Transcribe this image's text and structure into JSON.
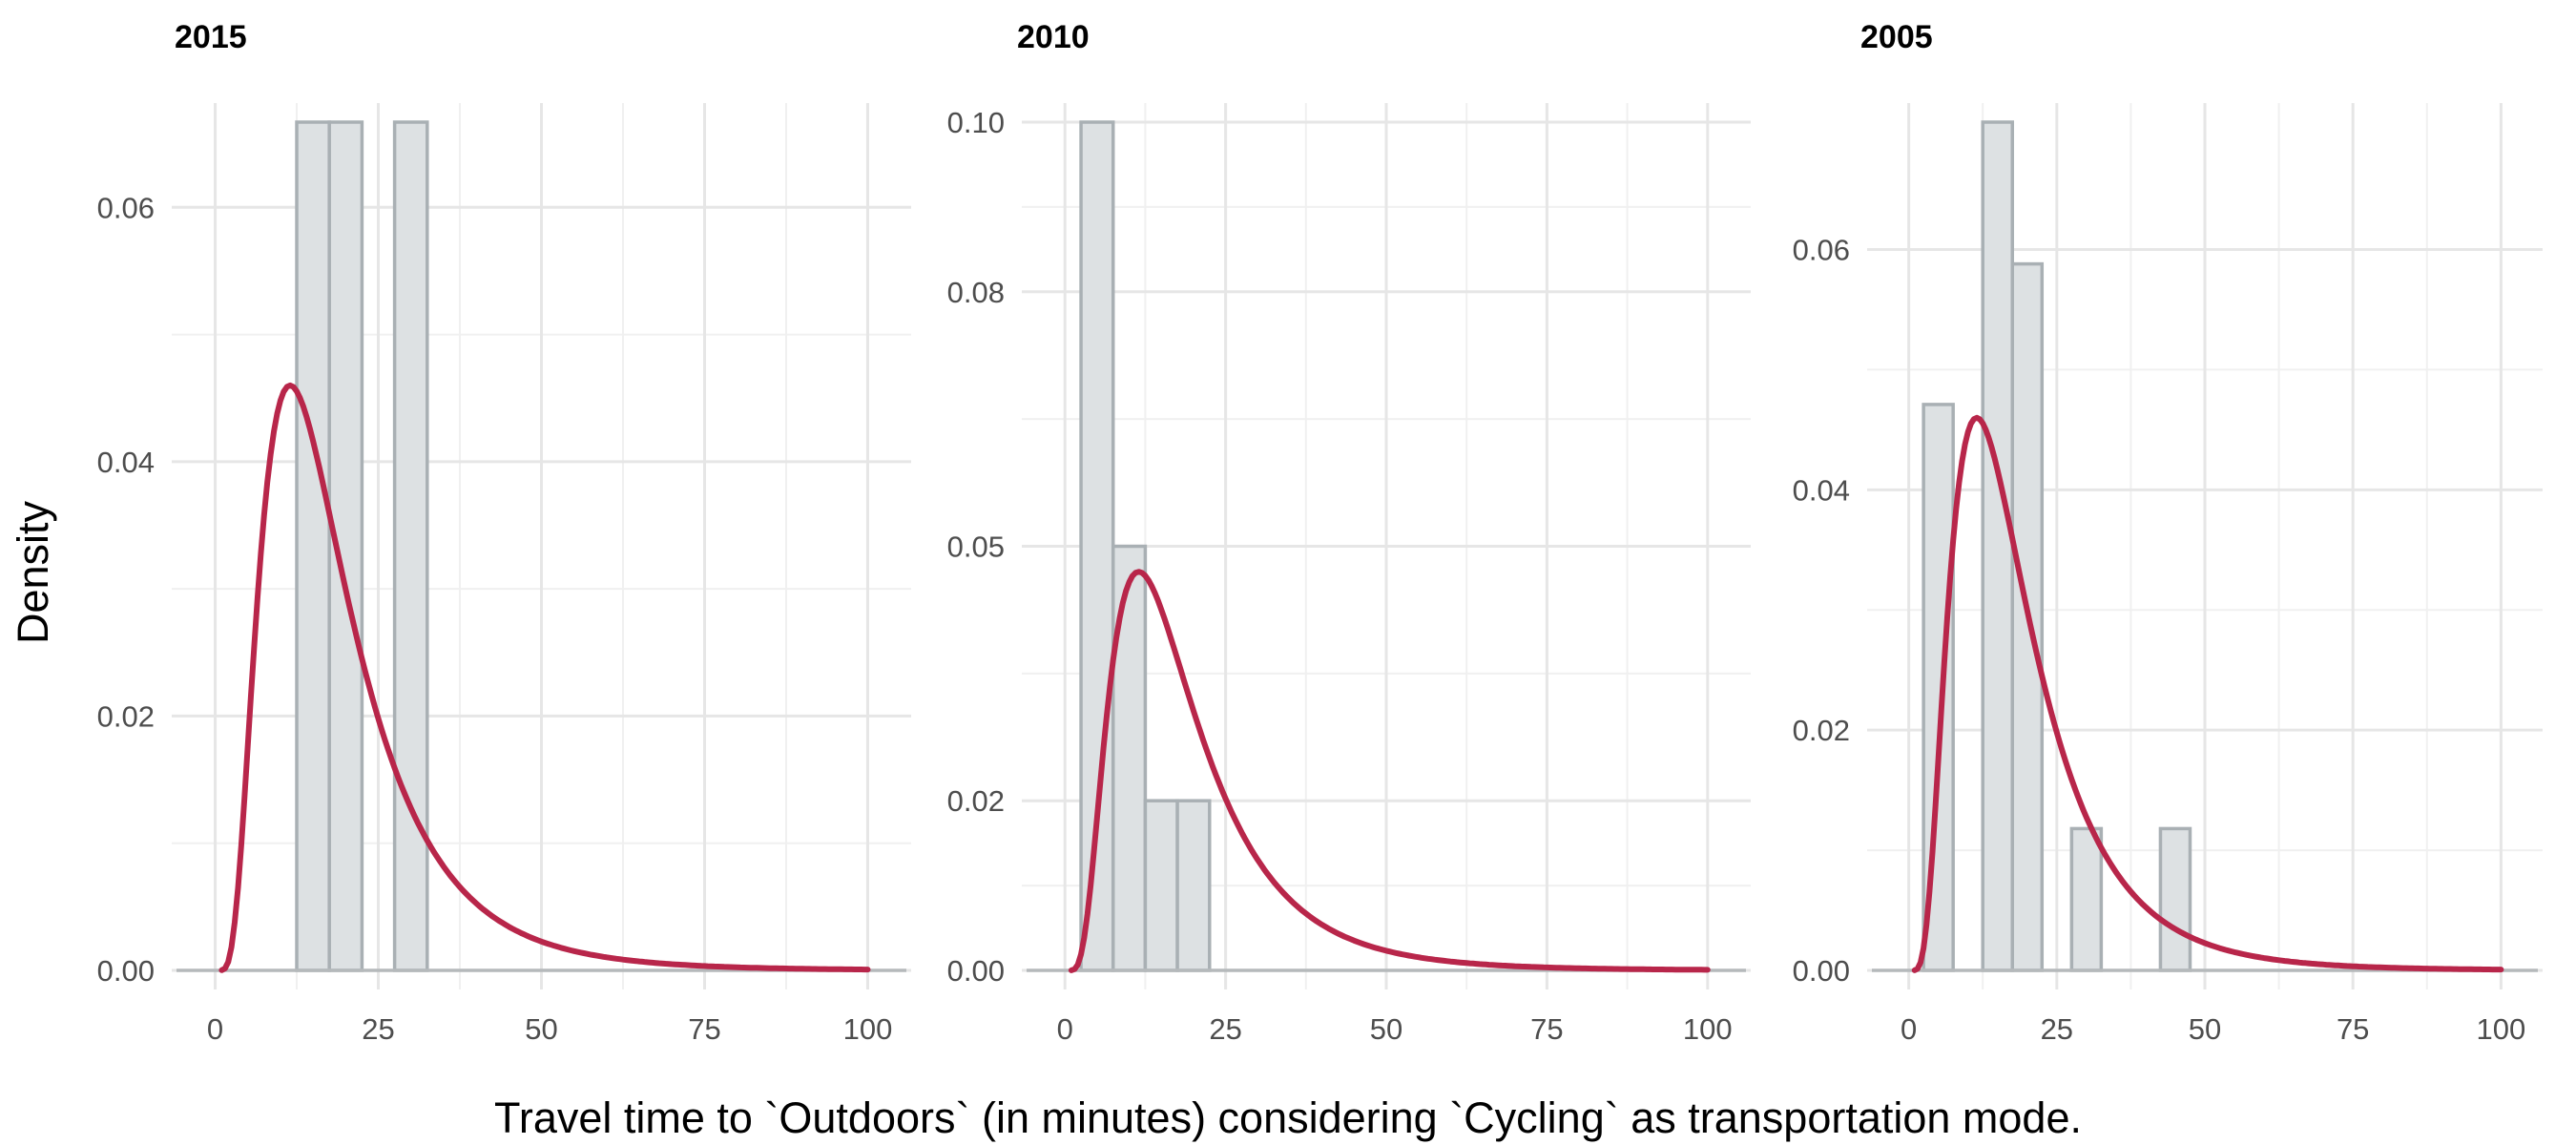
{
  "figure": {
    "xlabel": "Travel time to `Outdoors` (in minutes) considering `Cycling` as transportation mode.",
    "ylabel": "Density"
  },
  "chart_data": [
    {
      "type": "bar",
      "title": "2015",
      "xlim": [
        -3,
        103
      ],
      "ylim": [
        0,
        0.0667
      ],
      "x_ticks": [
        0,
        25,
        50,
        75,
        100
      ],
      "x_tick_labels": [
        "0",
        "25",
        "50",
        "75",
        "100"
      ],
      "y_ticks": [
        0,
        0.02,
        0.04,
        0.06
      ],
      "y_tick_labels": [
        "0.00",
        "0.02",
        "0.04",
        "0.06"
      ],
      "bins": [
        {
          "x0": 12.5,
          "x1": 17.5,
          "density": 0.0667
        },
        {
          "x0": 17.5,
          "x1": 22.5,
          "density": 0.0667
        },
        {
          "x0": 27.5,
          "x1": 32.5,
          "density": 0.0667
        }
      ],
      "curve_peak": {
        "x": 11.5,
        "y": 0.046
      }
    },
    {
      "type": "bar",
      "title": "2010",
      "xlim": [
        -3,
        103
      ],
      "ylim": [
        0,
        0.1
      ],
      "x_ticks": [
        0,
        25,
        50,
        75,
        100
      ],
      "x_tick_labels": [
        "0",
        "25",
        "50",
        "75",
        "100"
      ],
      "y_ticks": [
        0,
        0.02,
        0.05,
        0.08,
        0.1
      ],
      "y_tick_labels": [
        "0.00",
        "0.02",
        "0.05",
        "0.08",
        "0.10"
      ],
      "bins": [
        {
          "x0": 2.5,
          "x1": 7.5,
          "density": 0.1
        },
        {
          "x0": 7.5,
          "x1": 12.5,
          "density": 0.05
        },
        {
          "x0": 12.5,
          "x1": 17.5,
          "density": 0.02
        },
        {
          "x0": 17.5,
          "x1": 22.5,
          "density": 0.02
        }
      ],
      "curve_peak": {
        "x": 11.5,
        "y": 0.047
      }
    },
    {
      "type": "bar",
      "title": "2005",
      "xlim": [
        -3,
        103
      ],
      "ylim": [
        0,
        0.0706
      ],
      "x_ticks": [
        0,
        25,
        50,
        75,
        100
      ],
      "x_tick_labels": [
        "0",
        "25",
        "50",
        "75",
        "100"
      ],
      "y_ticks": [
        0,
        0.02,
        0.04,
        0.06
      ],
      "y_tick_labels": [
        "0.00",
        "0.02",
        "0.04",
        "0.06"
      ],
      "bins": [
        {
          "x0": 2.5,
          "x1": 7.5,
          "density": 0.0471
        },
        {
          "x0": 12.5,
          "x1": 17.5,
          "density": 0.0706
        },
        {
          "x0": 17.5,
          "x1": 22.5,
          "density": 0.0588
        },
        {
          "x0": 27.5,
          "x1": 32.5,
          "density": 0.0118
        },
        {
          "x0": 42.5,
          "x1": 47.5,
          "density": 0.0118
        }
      ],
      "curve_peak": {
        "x": 11.5,
        "y": 0.046
      }
    }
  ]
}
